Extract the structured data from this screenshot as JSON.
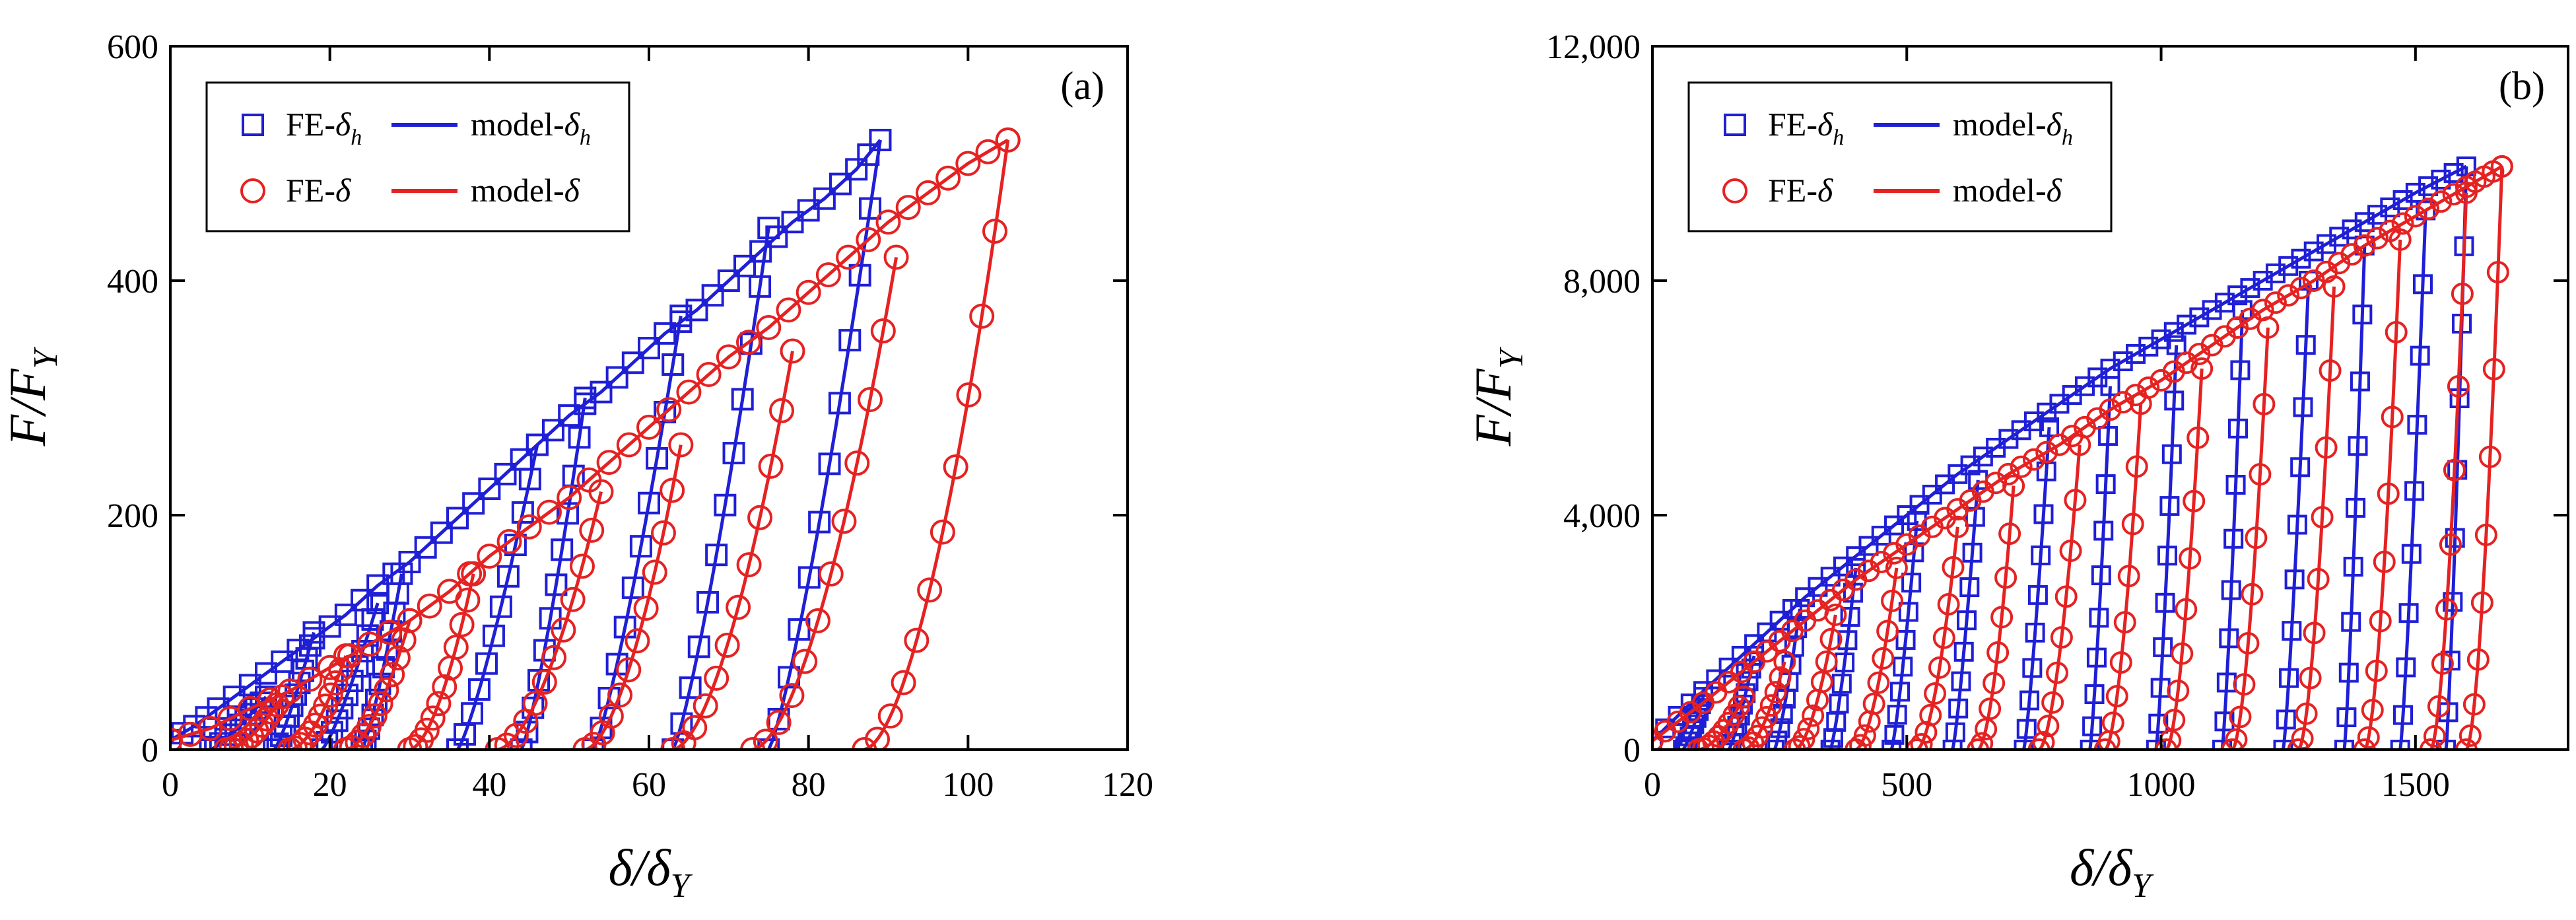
{
  "chart_data": [
    {
      "type": "scatter",
      "panel_label": "(a)",
      "xlabel": "δ/δY",
      "xlabel_parts": [
        "δ",
        "/",
        "δ",
        "Y"
      ],
      "ylabel": "F/FY",
      "ylabel_parts": [
        "F",
        "/",
        "F",
        "Y"
      ],
      "xlim": [
        0,
        120
      ],
      "ylim": [
        0,
        600
      ],
      "xticks": [
        0,
        20,
        40,
        60,
        80,
        100,
        120
      ],
      "yticks": [
        0,
        200,
        400,
        600
      ],
      "xtick_labels": [
        "0",
        "20",
        "40",
        "60",
        "80",
        "100",
        "120"
      ],
      "ytick_labels": [
        "0",
        "200",
        "400",
        "600"
      ],
      "legend": [
        {
          "kind": "marker",
          "marker": "square",
          "color": "#1f1fd6",
          "label": "FE-δh",
          "base": "FE-",
          "sym": "δ",
          "sub": "h"
        },
        {
          "kind": "line",
          "color": "#1f1fd6",
          "label": "model-δh",
          "base": "model-",
          "sym": "δ",
          "sub": "h"
        },
        {
          "kind": "marker",
          "marker": "circle",
          "color": "#e52222",
          "label": "FE-δ",
          "base": "FE-",
          "sym": "δ",
          "sub": ""
        },
        {
          "kind": "line",
          "color": "#e52222",
          "label": "model-δ",
          "base": "model-",
          "sym": "δ",
          "sub": ""
        }
      ],
      "series": [
        {
          "name": "FE-δh",
          "marker": "square",
          "color": "#1f1fd6",
          "envelope": {
            "x": [
              0,
              3,
              6,
              10,
              14,
              18,
              22,
              26,
              30,
              34,
              38,
              42,
              46,
              50,
              54,
              58,
              62,
              66,
              70,
              74,
              78,
              82,
              86,
              89
            ],
            "y": [
              8,
              20,
              35,
              55,
              75,
              95,
              115,
              140,
              160,
              185,
              210,
              235,
              260,
              285,
              305,
              330,
              355,
              375,
              400,
              425,
              450,
              470,
              495,
              520
            ]
          },
          "unload_branches": [
            [
              5,
              45,
              12
            ],
            [
              13,
              100,
              18
            ],
            [
              19,
              125,
              26
            ],
            [
              24,
              150,
              29
            ],
            [
              36,
              260,
              46
            ],
            [
              44,
              300,
              52
            ],
            [
              53,
              370,
              64
            ],
            [
              63,
              445,
              75
            ],
            [
              75,
              520,
              89
            ]
          ]
        },
        {
          "name": "model-δh",
          "line": true,
          "color": "#1f1fd6"
        },
        {
          "name": "FE-δ",
          "marker": "circle",
          "color": "#e52222",
          "envelope": {
            "x": [
              0,
              5,
              10,
              15,
              20,
              25,
              30,
              35,
              40,
              45,
              50,
              55,
              60,
              65,
              70,
              75,
              80,
              85,
              90,
              95,
              100,
              105
            ],
            "y": [
              8,
              18,
              35,
              50,
              70,
              90,
              110,
              135,
              165,
              190,
              215,
              245,
              275,
              305,
              335,
              360,
              390,
              420,
              450,
              475,
              500,
              520
            ]
          },
          "unload_branches": [
            [
              7,
              45,
              14
            ],
            [
              15,
              80,
              22
            ],
            [
              22,
              110,
              30
            ],
            [
              30,
              150,
              38
            ],
            [
              41,
              220,
              54
            ],
            [
              52,
              260,
              64
            ],
            [
              63,
              340,
              78
            ],
            [
              73,
              420,
              91
            ],
            [
              87,
              520,
              105
            ]
          ]
        },
        {
          "name": "model-δ",
          "line": true,
          "color": "#e52222"
        }
      ]
    },
    {
      "type": "scatter",
      "panel_label": "(b)",
      "xlabel": "δ/δY",
      "xlabel_parts": [
        "δ",
        "/",
        "δ",
        "Y"
      ],
      "ylabel": "F/FY",
      "ylabel_parts": [
        "F",
        "/",
        "F",
        "Y"
      ],
      "xlim": [
        0,
        1800
      ],
      "ylim": [
        0,
        12000
      ],
      "xticks": [
        0,
        500,
        1000,
        1500
      ],
      "yticks": [
        0,
        4000,
        8000,
        12000
      ],
      "xtick_labels": [
        "0",
        "500",
        "1000",
        "1500"
      ],
      "ytick_labels": [
        "0",
        "4,000",
        "8,000",
        "12,000"
      ],
      "legend": [
        {
          "kind": "marker",
          "marker": "square",
          "color": "#1f1fd6",
          "label": "FE-δh",
          "base": "FE-",
          "sym": "δ",
          "sub": "h"
        },
        {
          "kind": "line",
          "color": "#1f1fd6",
          "label": "model-δh",
          "base": "model-",
          "sym": "δ",
          "sub": "h"
        },
        {
          "kind": "marker",
          "marker": "circle",
          "color": "#e52222",
          "label": "FE-δ",
          "base": "FE-",
          "sym": "δ",
          "sub": ""
        },
        {
          "kind": "line",
          "color": "#e52222",
          "label": "model-δ",
          "base": "model-",
          "sym": "δ",
          "sub": ""
        }
      ],
      "series": [
        {
          "name": "FE-δh",
          "marker": "square",
          "color": "#1f1fd6",
          "envelope": {
            "x": [
              0,
              100,
              200,
              300,
              400,
              500,
              600,
              700,
              800,
              900,
              1000,
              1100,
              1200,
              1300,
              1400,
              1500,
              1600
            ],
            "y": [
              150,
              1000,
              1800,
              2600,
              3300,
              4000,
              4700,
              5300,
              5900,
              6500,
              7000,
              7500,
              8000,
              8500,
              9000,
              9500,
              9950
            ]
          },
          "unload_branches": [
            [
              60,
              900,
              100
            ],
            [
              150,
              1600,
              200
            ],
            [
              240,
              2400,
              290
            ],
            [
              350,
              3100,
              400
            ],
            [
              470,
              3900,
              520
            ],
            [
              590,
              4600,
              640
            ],
            [
              730,
              5500,
              780
            ],
            [
              860,
              6200,
              900
            ],
            [
              990,
              6900,
              1030
            ],
            [
              1120,
              7500,
              1160
            ],
            [
              1240,
              8000,
              1290
            ],
            [
              1360,
              8600,
              1400
            ],
            [
              1470,
              9200,
              1520
            ],
            [
              1560,
              9950,
              1600
            ]
          ]
        },
        {
          "name": "model-δh",
          "line": true,
          "color": "#1f1fd6"
        },
        {
          "name": "FE-δ",
          "marker": "circle",
          "color": "#e52222",
          "envelope": {
            "x": [
              0,
              100,
              200,
              300,
              400,
              500,
              600,
              700,
              800,
              900,
              1000,
              1100,
              1200,
              1300,
              1400,
              1500,
              1600,
              1670
            ],
            "y": [
              150,
              800,
              1500,
              2200,
              2900,
              3500,
              4100,
              4700,
              5200,
              5800,
              6300,
              6900,
              7500,
              8000,
              8600,
              9100,
              9600,
              9950
            ]
          },
          "unload_branches": [
            [
              90,
              900,
              180
            ],
            [
              180,
              1500,
              260
            ],
            [
              280,
              2300,
              360
            ],
            [
              400,
              3100,
              480
            ],
            [
              520,
              3800,
              600
            ],
            [
              640,
              4500,
              710
            ],
            [
              760,
              5200,
              840
            ],
            [
              890,
              5900,
              960
            ],
            [
              1010,
              6500,
              1080
            ],
            [
              1140,
              7200,
              1210
            ],
            [
              1270,
              7900,
              1340
            ],
            [
              1400,
              8700,
              1470
            ],
            [
              1530,
              9500,
              1600
            ],
            [
              1600,
              9950,
              1670
            ]
          ]
        },
        {
          "name": "model-δ",
          "line": true,
          "color": "#e52222"
        }
      ]
    }
  ]
}
